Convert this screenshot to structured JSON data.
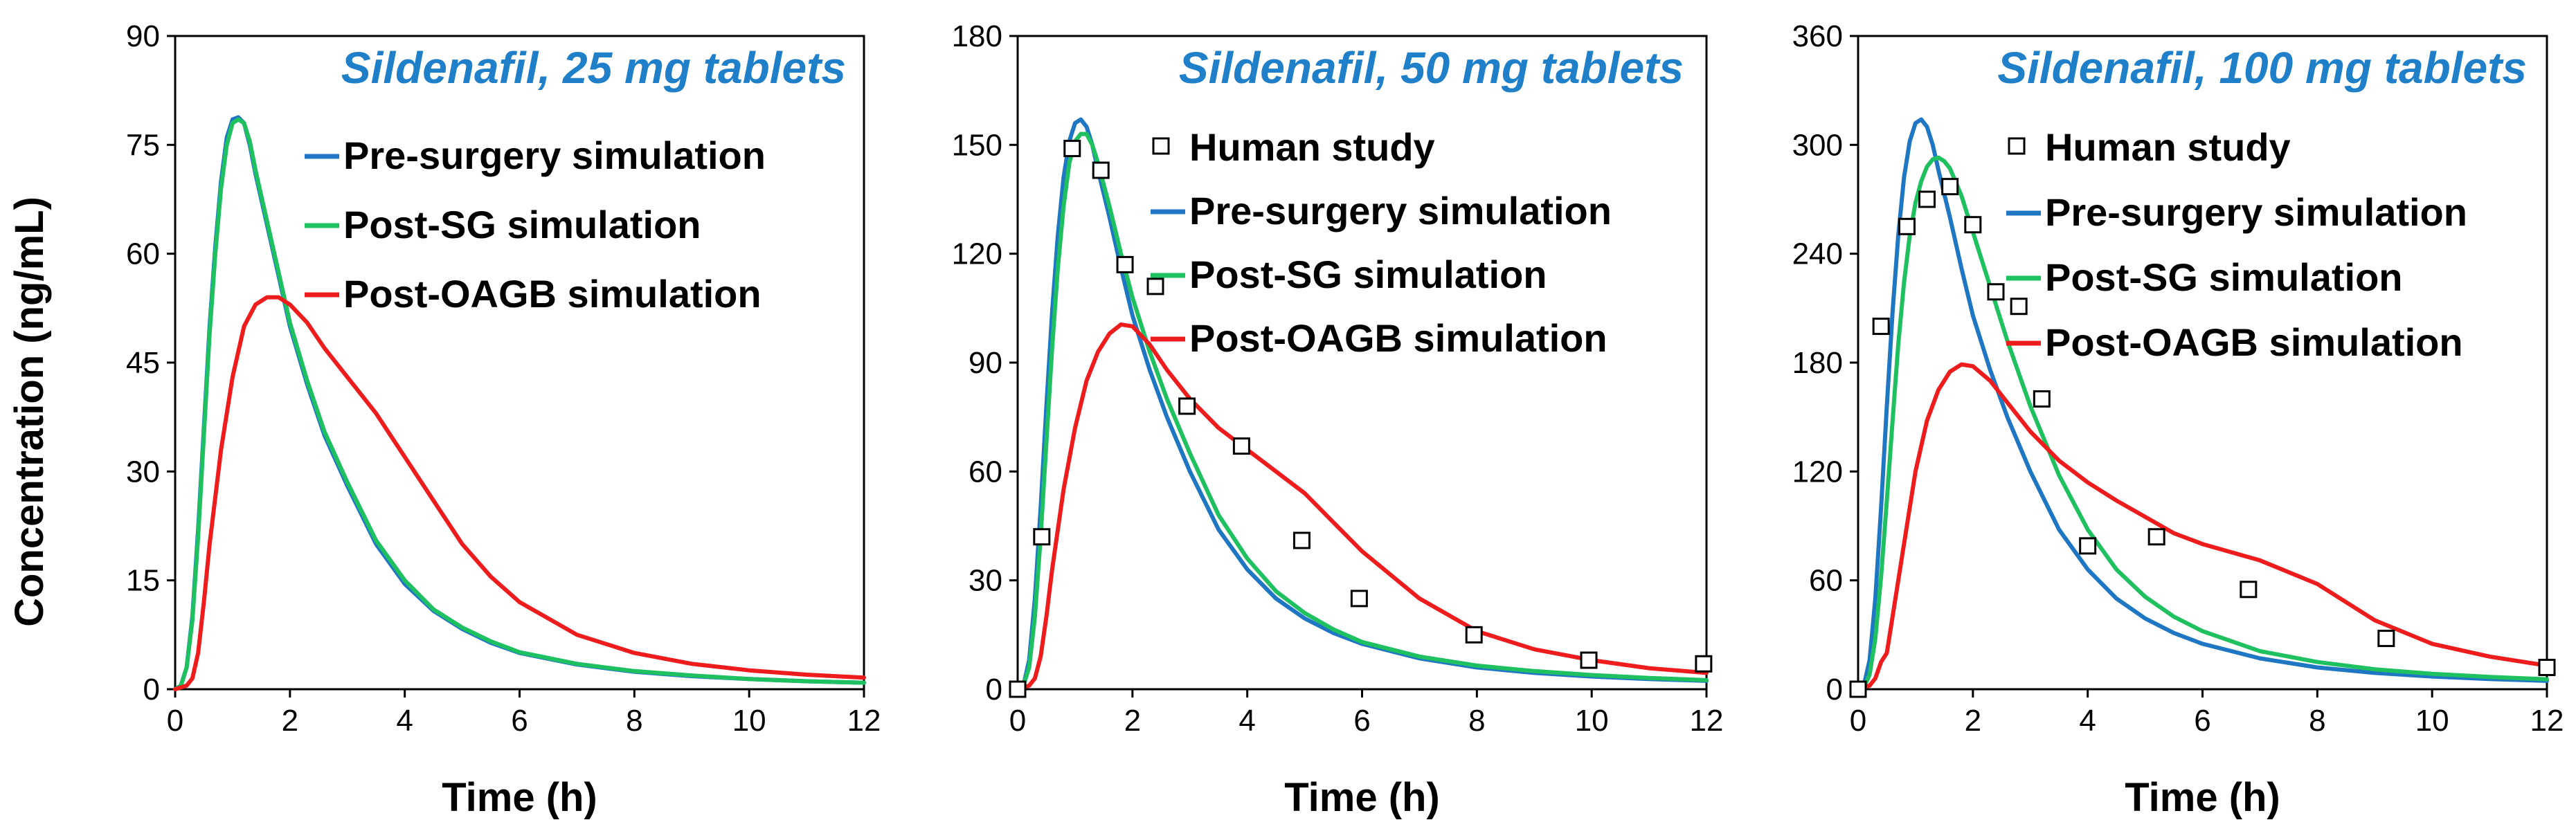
{
  "figure": {
    "ylabel": "Concentration (ng/mL)",
    "xlabel": "Time (h)"
  },
  "colors": {
    "pre_surgery": "#1f77c4",
    "post_sg": "#1ec05f",
    "post_oagb": "#ee1c1c",
    "human": "#000000",
    "title": "#1f7fc8"
  },
  "legend_labels": {
    "human": "Human study",
    "pre": "Pre-surgery simulation",
    "sg": "Post-SG simulation",
    "oagb": "Post-OAGB simulation"
  },
  "chart_data": [
    {
      "type": "line",
      "title": "Sildenafil, 25 mg tablets",
      "xlabel": "Time (h)",
      "ylabel": "Concentration (ng/mL)",
      "xlim": [
        0,
        12
      ],
      "ylim": [
        0,
        90
      ],
      "xticks": [
        0,
        2,
        4,
        6,
        8,
        10,
        12
      ],
      "yticks": [
        0,
        15,
        30,
        45,
        60,
        75,
        90
      ],
      "legend": [
        "pre",
        "sg",
        "oagb"
      ],
      "series": [
        {
          "name": "Pre-surgery simulation",
          "key": "pre",
          "x": [
            0,
            0.1,
            0.2,
            0.3,
            0.4,
            0.5,
            0.6,
            0.7,
            0.8,
            0.9,
            1.0,
            1.1,
            1.2,
            1.3,
            1.4,
            1.6,
            1.8,
            2.0,
            2.3,
            2.6,
            3.0,
            3.5,
            4.0,
            4.5,
            5.0,
            5.5,
            6.0,
            7.0,
            8.0,
            9.0,
            10.0,
            11.0,
            12.0
          ],
          "values": [
            0,
            0.5,
            3,
            10,
            22,
            36,
            50,
            61,
            70,
            76,
            78.5,
            78.8,
            78,
            75,
            71,
            64,
            57,
            50,
            42,
            35,
            28,
            20,
            14.5,
            10.8,
            8.3,
            6.4,
            5.0,
            3.4,
            2.4,
            1.8,
            1.4,
            1.1,
            0.9
          ]
        },
        {
          "name": "Post-SG simulation",
          "key": "sg",
          "x": [
            0,
            0.1,
            0.2,
            0.3,
            0.4,
            0.5,
            0.6,
            0.7,
            0.8,
            0.9,
            1.0,
            1.1,
            1.2,
            1.3,
            1.4,
            1.6,
            1.8,
            2.0,
            2.3,
            2.6,
            3.0,
            3.5,
            4.0,
            4.5,
            5.0,
            5.5,
            6.0,
            7.0,
            8.0,
            9.0,
            10.0,
            11.0,
            12.0
          ],
          "values": [
            0,
            0.5,
            3,
            9.5,
            21,
            35,
            49,
            60,
            69,
            75,
            78,
            78.5,
            78,
            75.5,
            71.5,
            64.5,
            57.5,
            50.5,
            42.5,
            35.5,
            28.5,
            20.5,
            15,
            11,
            8.5,
            6.6,
            5.1,
            3.5,
            2.5,
            1.9,
            1.4,
            1.1,
            0.9
          ]
        },
        {
          "name": "Post-OAGB simulation",
          "key": "oagb",
          "x": [
            0,
            0.2,
            0.3,
            0.4,
            0.5,
            0.6,
            0.8,
            1.0,
            1.2,
            1.4,
            1.6,
            1.8,
            2.0,
            2.3,
            2.6,
            3.0,
            3.5,
            4.0,
            4.5,
            5.0,
            5.5,
            6.0,
            7.0,
            8.0,
            9.0,
            10.0,
            11.0,
            12.0
          ],
          "values": [
            0,
            0.5,
            1.5,
            5,
            12,
            20,
            33,
            43,
            50,
            53,
            54,
            54,
            53,
            50.5,
            47,
            43,
            38,
            32,
            26,
            20,
            15.5,
            12,
            7.5,
            5,
            3.5,
            2.6,
            2,
            1.6
          ]
        }
      ],
      "scatter": []
    },
    {
      "type": "line",
      "title": "Sildenafil, 50 mg tablets",
      "xlabel": "Time (h)",
      "ylabel": "",
      "xlim": [
        0,
        12
      ],
      "ylim": [
        0,
        180
      ],
      "xticks": [
        0,
        2,
        4,
        6,
        8,
        10,
        12
      ],
      "yticks": [
        0,
        30,
        60,
        90,
        120,
        150,
        180
      ],
      "legend": [
        "human",
        "pre",
        "sg",
        "oagb"
      ],
      "series": [
        {
          "name": "Pre-surgery simulation",
          "key": "pre",
          "x": [
            0,
            0.1,
            0.2,
            0.3,
            0.4,
            0.5,
            0.6,
            0.7,
            0.8,
            0.9,
            1.0,
            1.1,
            1.2,
            1.3,
            1.4,
            1.6,
            1.8,
            2.0,
            2.3,
            2.6,
            3.0,
            3.5,
            4.0,
            4.5,
            5.0,
            5.5,
            6.0,
            7.0,
            8.0,
            9.0,
            10.0,
            11.0,
            12.0
          ],
          "values": [
            0,
            1,
            8,
            25,
            50,
            78,
            104,
            125,
            141,
            151,
            156,
            157,
            155,
            150,
            143,
            130,
            116,
            103,
            88,
            75,
            60,
            44,
            33,
            25,
            19.5,
            15.5,
            12.5,
            8.5,
            6,
            4.5,
            3.5,
            2.8,
            2.3
          ]
        },
        {
          "name": "Post-SG simulation",
          "key": "sg",
          "x": [
            0,
            0.1,
            0.2,
            0.3,
            0.4,
            0.5,
            0.6,
            0.7,
            0.8,
            0.9,
            1.0,
            1.1,
            1.2,
            1.3,
            1.4,
            1.6,
            1.8,
            2.0,
            2.3,
            2.6,
            3.0,
            3.5,
            4.0,
            4.5,
            5.0,
            5.5,
            6.0,
            7.0,
            8.0,
            9.0,
            10.0,
            11.0,
            12.0
          ],
          "values": [
            0,
            1,
            6,
            20,
            42,
            68,
            94,
            116,
            133,
            145,
            151,
            153,
            153,
            150,
            145,
            133,
            120,
            108,
            93,
            80,
            65,
            48,
            36,
            27,
            21,
            16.5,
            13,
            9,
            6.5,
            5,
            3.9,
            3.1,
            2.5
          ]
        },
        {
          "name": "Post-OAGB simulation",
          "key": "oagb",
          "x": [
            0,
            0.2,
            0.3,
            0.4,
            0.5,
            0.6,
            0.8,
            1.0,
            1.2,
            1.4,
            1.6,
            1.8,
            2.0,
            2.3,
            2.6,
            3.0,
            3.5,
            4.0,
            4.5,
            5.0,
            5.5,
            6.0,
            7.0,
            8.0,
            9.0,
            10.0,
            11.0,
            12.0
          ],
          "values": [
            0,
            1,
            3,
            9,
            20,
            33,
            55,
            72,
            85,
            93,
            98,
            100.5,
            100,
            95,
            88,
            80,
            72,
            66,
            60,
            54,
            46,
            38,
            25,
            16,
            11,
            8,
            5.8,
            4.5
          ]
        }
      ],
      "scatter": [
        {
          "name": "Human study",
          "key": "human",
          "x": [
            0,
            0.42,
            0.95,
            1.45,
            1.87,
            2.4,
            2.95,
            3.9,
            4.95,
            5.95,
            7.95,
            9.95,
            11.95
          ],
          "values": [
            0,
            42,
            149,
            143,
            117,
            111,
            78,
            67,
            41,
            25,
            15,
            8,
            7
          ]
        }
      ]
    },
    {
      "type": "line",
      "title": "Sildenafil, 100 mg tablets",
      "xlabel": "Time (h)",
      "ylabel": "",
      "xlim": [
        0,
        12
      ],
      "ylim": [
        0,
        360
      ],
      "xticks": [
        0,
        2,
        4,
        6,
        8,
        10,
        12
      ],
      "yticks": [
        0,
        60,
        120,
        180,
        240,
        300,
        360
      ],
      "legend": [
        "human",
        "pre",
        "sg",
        "oagb"
      ],
      "series": [
        {
          "name": "Pre-surgery simulation",
          "key": "pre",
          "x": [
            0,
            0.1,
            0.2,
            0.3,
            0.4,
            0.5,
            0.6,
            0.7,
            0.8,
            0.9,
            1.0,
            1.1,
            1.2,
            1.3,
            1.4,
            1.6,
            1.8,
            2.0,
            2.3,
            2.6,
            3.0,
            3.5,
            4.0,
            4.5,
            5.0,
            5.5,
            6.0,
            7.0,
            8.0,
            9.0,
            10.0,
            11.0,
            12.0
          ],
          "values": [
            0,
            2,
            16,
            50,
            100,
            156,
            208,
            250,
            282,
            302,
            312,
            314,
            310,
            300,
            286,
            260,
            232,
            206,
            176,
            150,
            120,
            88,
            66,
            50,
            39,
            31,
            25,
            17,
            12,
            9,
            7,
            5.6,
            4.6
          ]
        },
        {
          "name": "Post-SG simulation",
          "key": "sg",
          "x": [
            0,
            0.1,
            0.2,
            0.3,
            0.4,
            0.5,
            0.6,
            0.7,
            0.8,
            0.9,
            1.0,
            1.1,
            1.2,
            1.3,
            1.4,
            1.5,
            1.6,
            1.8,
            2.0,
            2.3,
            2.6,
            3.0,
            3.5,
            4.0,
            4.5,
            5.0,
            5.5,
            6.0,
            7.0,
            8.0,
            9.0,
            10.0,
            11.0,
            12.0
          ],
          "values": [
            0,
            1,
            8,
            28,
            62,
            104,
            148,
            190,
            224,
            250,
            268,
            280,
            288,
            292,
            293,
            291,
            287,
            272,
            252,
            222,
            192,
            156,
            118,
            88,
            66,
            51,
            40,
            32,
            21,
            15,
            11,
            8.5,
            6.8,
            5.5
          ]
        },
        {
          "name": "Post-OAGB simulation",
          "key": "oagb",
          "x": [
            0,
            0.2,
            0.3,
            0.4,
            0.5,
            0.6,
            0.8,
            1.0,
            1.2,
            1.4,
            1.6,
            1.8,
            2.0,
            2.3,
            2.6,
            3.0,
            3.5,
            4.0,
            4.5,
            5.0,
            5.5,
            6.0,
            7.0,
            8.0,
            8.5,
            9.0,
            10.0,
            11.0,
            12.0
          ],
          "values": [
            0,
            2,
            6,
            15,
            20,
            40,
            80,
            120,
            148,
            165,
            175,
            179,
            178,
            170,
            158,
            142,
            126,
            114,
            104,
            95,
            86,
            80,
            71,
            58,
            48,
            38,
            25,
            18,
            13
          ]
        }
      ],
      "scatter": [
        {
          "name": "Human study",
          "key": "human",
          "x": [
            0,
            0.4,
            0.85,
            1.2,
            1.6,
            2.0,
            2.4,
            2.8,
            3.2,
            4.0,
            5.2,
            6.8,
            9.2,
            12.0
          ],
          "values": [
            0,
            200,
            255,
            270,
            277,
            256,
            219,
            211,
            160,
            79,
            84,
            55,
            28,
            12
          ]
        }
      ]
    }
  ]
}
